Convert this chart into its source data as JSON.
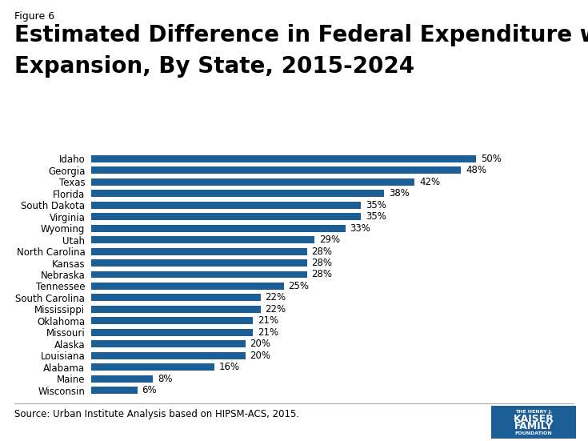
{
  "figure_label": "Figure 6",
  "title_line1": "Estimated Difference in Federal Expenditure with",
  "title_line2": "Expansion, By State, 2015-2024",
  "source": "Source: Urban Institute Analysis based on HIPSM-ACS, 2015.",
  "states": [
    "Wisconsin",
    "Maine",
    "Alabama",
    "Louisiana",
    "Alaska",
    "Missouri",
    "Oklahoma",
    "Mississippi",
    "South Carolina",
    "Tennessee",
    "Nebraska",
    "Kansas",
    "North Carolina",
    "Utah",
    "Wyoming",
    "Virginia",
    "South Dakota",
    "Florida",
    "Texas",
    "Georgia",
    "Idaho"
  ],
  "values": [
    6,
    8,
    16,
    20,
    20,
    21,
    21,
    22,
    22,
    25,
    28,
    28,
    28,
    29,
    33,
    35,
    35,
    38,
    42,
    48,
    50
  ],
  "bar_color": "#1c5e96",
  "background_color": "#ffffff",
  "bar_label_fontsize": 8.5,
  "ytick_fontsize": 8.5,
  "title_fontsize": 20,
  "fig_label_fontsize": 9,
  "source_fontsize": 8.5,
  "logo_bg": "#1c5e96",
  "logo_text_color": "#ffffff"
}
